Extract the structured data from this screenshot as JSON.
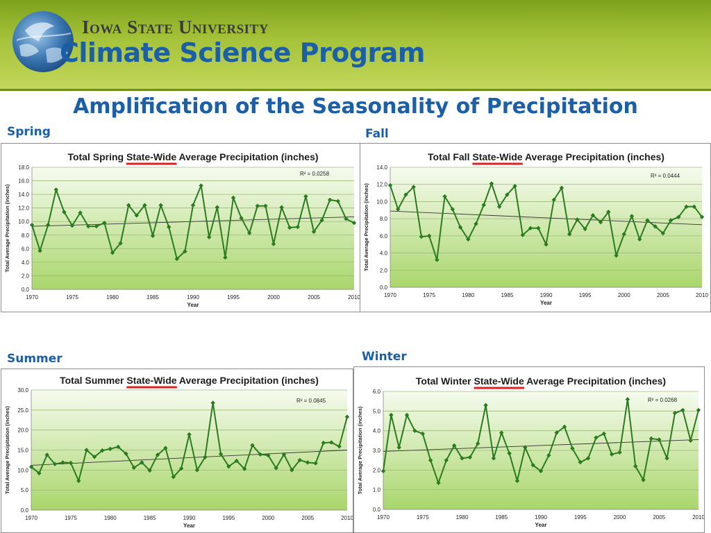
{
  "header": {
    "university": "Iowa State University",
    "program": "Climate Science Program"
  },
  "slide": {
    "title": "Amplification of the Seasonality of Precipitation"
  },
  "colors": {
    "line": "#2a7a1e",
    "grid": "#9fb97d",
    "trend": "#333333",
    "title_blue": "#1a5fa8",
    "underline": "#e02020",
    "plot_top": "#f6fbef",
    "plot_bottom": "#a9d66b"
  },
  "chart_data": [
    {
      "id": "spring",
      "season_label": "Spring",
      "type": "line",
      "title_prefix": "Total Spring ",
      "title_underlined": "State-Wide",
      "title_suffix": " Average Precipitation (inches)",
      "xlabel": "Year",
      "ylabel": "Total Average Precipitation (inches)",
      "r2": "R² = 0.0258",
      "xlim": [
        1970,
        2010
      ],
      "ylim": [
        0,
        18
      ],
      "y_step": 2,
      "y_decimals": 1,
      "x_ticks": [
        1970,
        1975,
        1980,
        1985,
        1990,
        1995,
        2000,
        2005,
        2010
      ],
      "trend": [
        9.3,
        10.7
      ],
      "x": [
        1970,
        1971,
        1972,
        1973,
        1974,
        1975,
        1976,
        1977,
        1978,
        1979,
        1980,
        1981,
        1982,
        1983,
        1984,
        1985,
        1986,
        1987,
        1988,
        1989,
        1990,
        1991,
        1992,
        1993,
        1994,
        1995,
        1996,
        1997,
        1998,
        1999,
        2000,
        2001,
        2002,
        2003,
        2004,
        2005,
        2006,
        2007,
        2008,
        2009,
        2010
      ],
      "values": [
        9.5,
        5.7,
        9.5,
        14.7,
        11.4,
        9.4,
        11.3,
        9.3,
        9.3,
        9.8,
        5.4,
        6.8,
        12.4,
        10.9,
        12.4,
        7.9,
        12.4,
        9.2,
        4.5,
        5.6,
        12.4,
        15.3,
        7.7,
        12.1,
        4.7,
        13.5,
        10.5,
        8.3,
        12.3,
        12.3,
        6.7,
        12.1,
        9.1,
        9.2,
        13.7,
        8.5,
        10.2,
        13.2,
        13.0,
        10.4,
        9.8
      ]
    },
    {
      "id": "fall",
      "season_label": "Fall",
      "type": "line",
      "title_prefix": "Total Fall ",
      "title_underlined": "State-Wide",
      "title_suffix": " Average Precipitation (inches)",
      "xlabel": "Year",
      "ylabel": "Total Average Precipitation (inches)",
      "r2": "R² = 0.0444",
      "xlim": [
        1970,
        2010
      ],
      "ylim": [
        0,
        14
      ],
      "y_step": 2,
      "y_decimals": 1,
      "x_ticks": [
        1970,
        1975,
        1980,
        1985,
        1990,
        1995,
        2000,
        2005,
        2010
      ],
      "trend": [
        8.9,
        7.3
      ],
      "x": [
        1970,
        1971,
        1972,
        1973,
        1974,
        1975,
        1976,
        1977,
        1978,
        1979,
        1980,
        1981,
        1982,
        1983,
        1984,
        1985,
        1986,
        1987,
        1988,
        1989,
        1990,
        1991,
        1992,
        1993,
        1994,
        1995,
        1996,
        1997,
        1998,
        1999,
        2000,
        2001,
        2002,
        2003,
        2004,
        2005,
        2006,
        2007,
        2008,
        2009,
        2010
      ],
      "values": [
        11.9,
        9.1,
        10.8,
        11.7,
        5.9,
        6.0,
        3.2,
        10.6,
        9.1,
        7.0,
        5.6,
        7.4,
        9.6,
        12.1,
        9.4,
        10.8,
        11.8,
        6.1,
        6.9,
        6.9,
        5.0,
        10.2,
        11.6,
        6.2,
        7.9,
        6.8,
        8.4,
        7.6,
        8.8,
        3.7,
        6.2,
        8.3,
        5.6,
        7.8,
        7.1,
        6.3,
        7.8,
        8.2,
        9.4,
        9.4,
        8.2
      ]
    },
    {
      "id": "summer",
      "season_label": "Summer",
      "type": "line",
      "title_prefix": "Total Summer ",
      "title_underlined": "State-Wide",
      "title_suffix": " Average Precipitation (inches)",
      "xlabel": "Year",
      "ylabel": "Total Average Precipitation (inches)",
      "r2": "R² = 0.0845",
      "xlim": [
        1970,
        2010
      ],
      "ylim": [
        0,
        30
      ],
      "y_step": 5,
      "y_decimals": 1,
      "x_ticks": [
        1970,
        1975,
        1980,
        1985,
        1990,
        1995,
        2000,
        2005,
        2010
      ],
      "trend": [
        11.2,
        15.0
      ],
      "x": [
        1970,
        1971,
        1972,
        1973,
        1974,
        1975,
        1976,
        1977,
        1978,
        1979,
        1980,
        1981,
        1982,
        1983,
        1984,
        1985,
        1986,
        1987,
        1988,
        1989,
        1990,
        1991,
        1992,
        1993,
        1994,
        1995,
        1996,
        1997,
        1998,
        1999,
        2000,
        2001,
        2002,
        2003,
        2004,
        2005,
        2006,
        2007,
        2008,
        2009,
        2010
      ],
      "values": [
        10.8,
        9.2,
        13.8,
        11.5,
        11.9,
        11.8,
        7.3,
        15.0,
        13.3,
        14.9,
        15.3,
        15.8,
        14.1,
        10.6,
        11.9,
        9.9,
        13.8,
        15.5,
        8.3,
        10.4,
        18.9,
        10.0,
        13.2,
        26.8,
        14.0,
        10.9,
        12.3,
        10.3,
        16.2,
        13.9,
        13.7,
        10.5,
        13.9,
        10.0,
        12.5,
        11.9,
        11.7,
        16.8,
        16.9,
        15.9,
        23.3
      ]
    },
    {
      "id": "winter",
      "season_label": "Winter",
      "type": "line",
      "title_prefix": "Total Winter ",
      "title_underlined": "State-Wide",
      "title_suffix": " Average Precipitation (inches)",
      "xlabel": "Year",
      "ylabel": "Total Average Precipitation (inches)",
      "r2": "R² = 0.0268",
      "xlim": [
        1970,
        2010
      ],
      "ylim": [
        0,
        6
      ],
      "y_step": 1,
      "y_decimals": 1,
      "x_ticks": [
        1970,
        1975,
        1980,
        1985,
        1990,
        1995,
        2000,
        2005,
        2010
      ],
      "trend": [
        2.95,
        3.55
      ],
      "x": [
        1970,
        1971,
        1972,
        1973,
        1974,
        1975,
        1976,
        1977,
        1978,
        1979,
        1980,
        1981,
        1982,
        1983,
        1984,
        1985,
        1986,
        1987,
        1988,
        1989,
        1990,
        1991,
        1992,
        1993,
        1994,
        1995,
        1996,
        1997,
        1998,
        1999,
        2000,
        2001,
        2002,
        2003,
        2004,
        2005,
        2006,
        2007,
        2008,
        2009,
        2010
      ],
      "values": [
        1.95,
        4.8,
        3.15,
        4.8,
        4.0,
        3.85,
        2.5,
        1.35,
        2.5,
        3.25,
        2.6,
        2.65,
        3.35,
        5.3,
        2.6,
        3.9,
        2.85,
        1.45,
        3.15,
        2.25,
        1.95,
        2.75,
        3.9,
        4.2,
        3.1,
        2.4,
        2.6,
        3.65,
        3.85,
        2.8,
        2.9,
        5.6,
        2.2,
        1.5,
        3.6,
        3.55,
        2.6,
        4.9,
        5.05,
        3.5,
        5.05
      ]
    }
  ]
}
